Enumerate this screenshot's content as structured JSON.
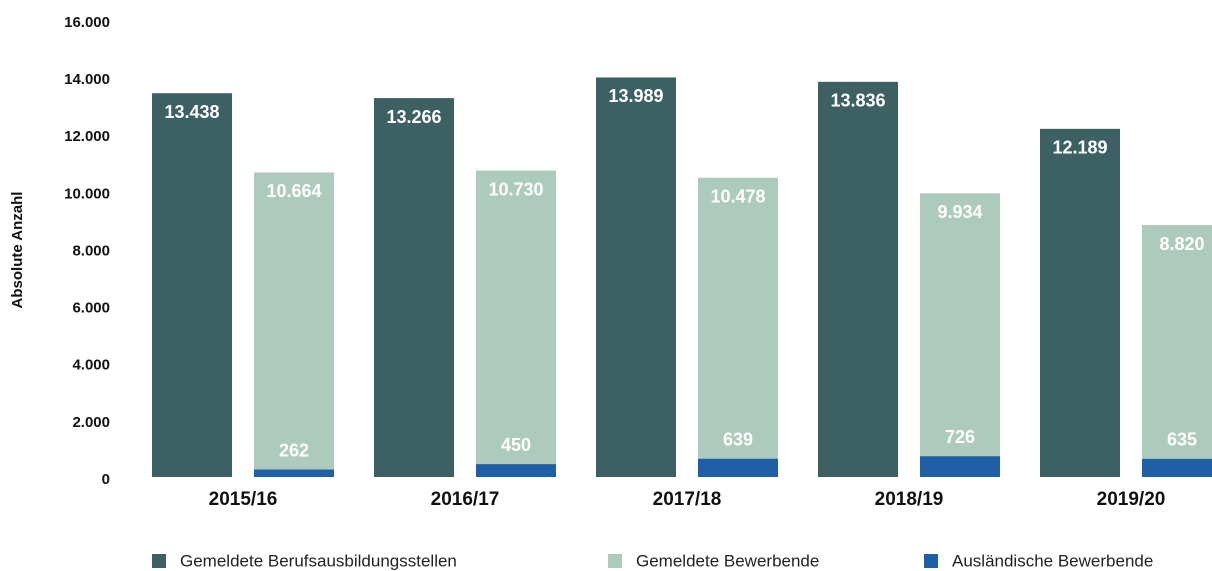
{
  "chart_data": {
    "type": "bar",
    "y_label": "Absolute Anzahl",
    "categories": [
      "2015/16",
      "2016/17",
      "2017/18",
      "2018/19",
      "2019/20"
    ],
    "series": [
      {
        "name": "Gemeldete Berufsausbildungsstellen",
        "color": "#3d6063",
        "values": [
          13438,
          13266,
          13989,
          13836,
          12189
        ],
        "value_labels": [
          "13.438",
          "13.266",
          "13.989",
          "13.836",
          "12.189"
        ]
      },
      {
        "name": "Gemeldete Bewerbende",
        "color": "#adcbbd",
        "values": [
          10664,
          10730,
          10478,
          9934,
          8820
        ],
        "value_labels": [
          "10.664",
          "10.730",
          "10.478",
          "9.934",
          "8.820"
        ]
      },
      {
        "name": "Ausländische Bewerbende",
        "color": "#1f5fa6",
        "values": [
          262,
          450,
          639,
          726,
          635
        ],
        "value_labels": [
          "262",
          "450",
          "639",
          "726",
          "635"
        ]
      }
    ],
    "ylim": [
      0,
      16000
    ],
    "yticks": [
      0,
      {
        "value": 2000,
        "label": "2.000"
      },
      {
        "value": 4000,
        "label": "4.000"
      },
      {
        "value": 6000,
        "label": "6.000"
      },
      {
        "value": 8000,
        "label": "8.000"
      },
      {
        "value": 10000,
        "label": "10.000"
      },
      {
        "value": 12000,
        "label": "12.000"
      },
      {
        "value": 14000,
        "label": "14.000"
      },
      {
        "value": 16000,
        "label": "16.000"
      }
    ],
    "grid": false
  }
}
